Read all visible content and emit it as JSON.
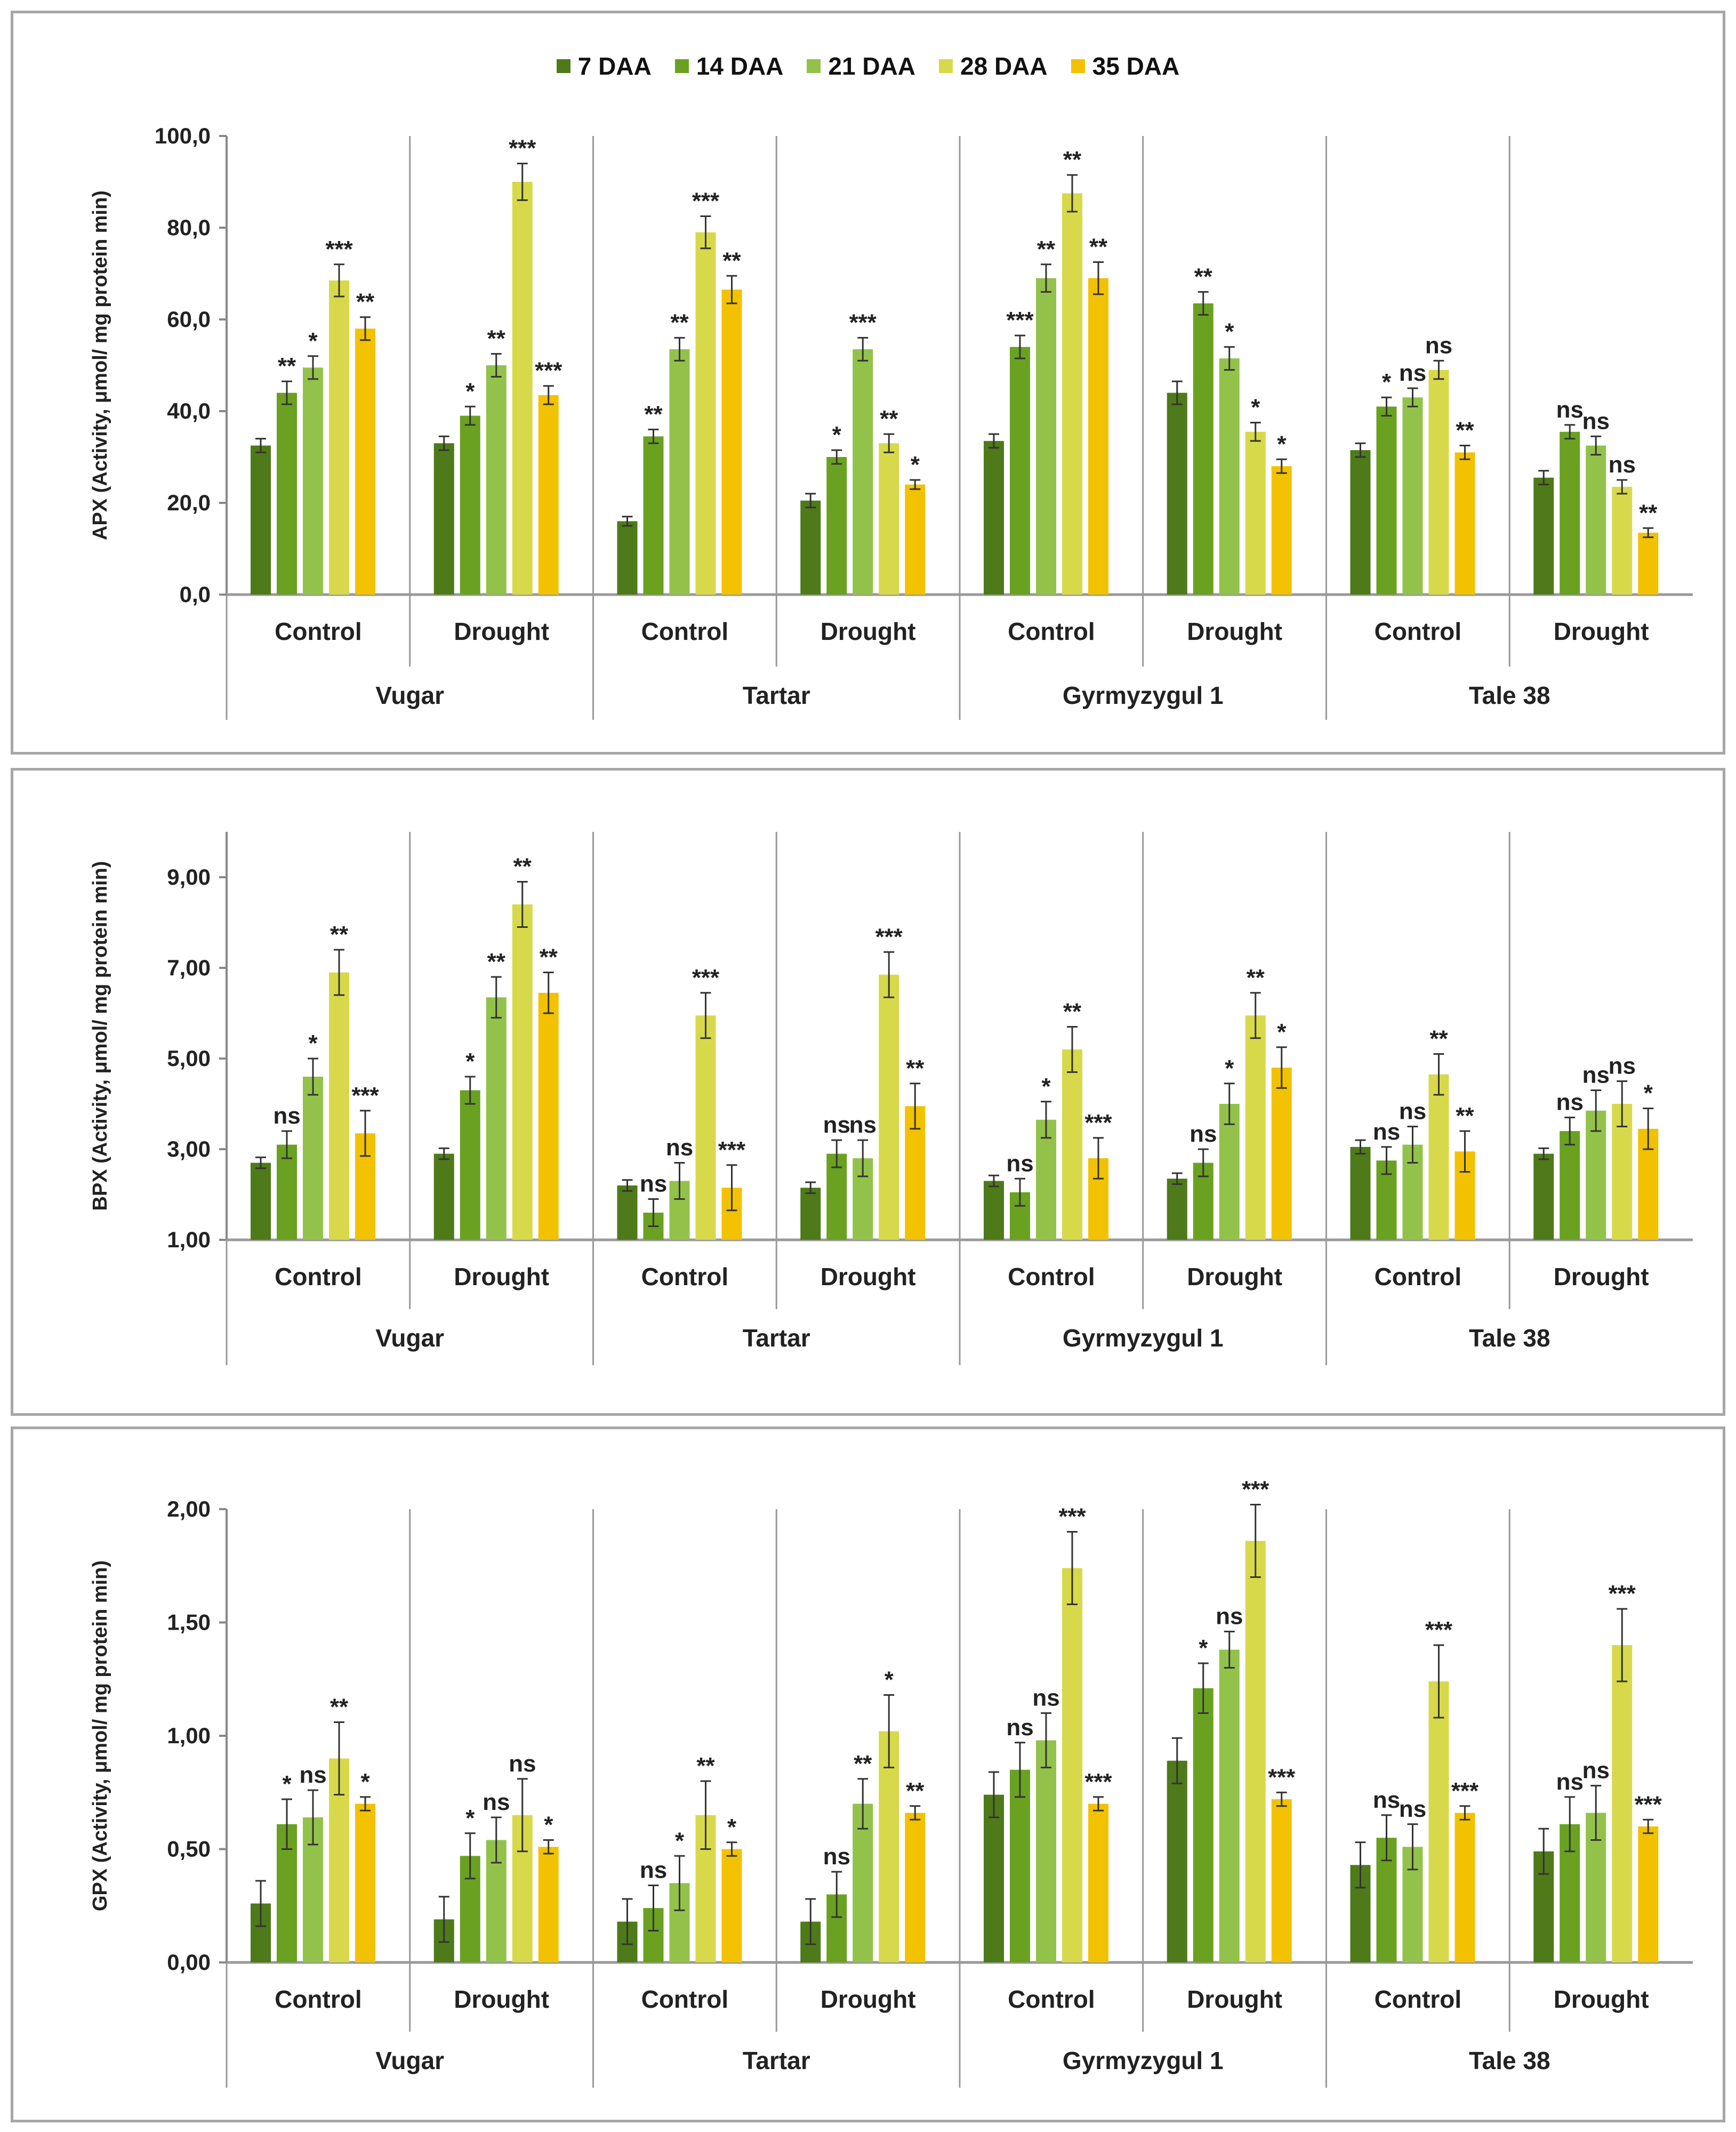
{
  "legend": {
    "items": [
      {
        "label": "7 DAA",
        "color": "#4e7a1a"
      },
      {
        "label": "14 DAA",
        "color": "#6aa121"
      },
      {
        "label": "21 DAA",
        "color": "#93c24a"
      },
      {
        "label": "28 DAA",
        "color": "#d7d94b"
      },
      {
        "label": "35 DAA",
        "color": "#f2c200"
      }
    ]
  },
  "chart_data": [
    {
      "type": "bar",
      "ylabel": "APX (Activity, μmol/ mg protein min)",
      "ylim": [
        0,
        100
      ],
      "yticks": [
        "0,0",
        "20,0",
        "40,0",
        "60,0",
        "80,0",
        "100,0"
      ],
      "yvals": [
        0,
        20,
        40,
        60,
        80,
        100
      ],
      "series_names": [
        "7 DAA",
        "14 DAA",
        "21 DAA",
        "28 DAA",
        "35 DAA"
      ],
      "groups": [
        {
          "cultivar": "Vugar",
          "conditions": [
            {
              "label": "Control",
              "values": [
                32.5,
                44,
                49.5,
                68.5,
                58
              ],
              "errors": [
                1.5,
                2.5,
                2.5,
                3.5,
                2.5
              ],
              "sig": [
                "",
                "**",
                "*",
                "***",
                "**"
              ]
            },
            {
              "label": "Drought",
              "values": [
                33,
                39,
                50,
                90,
                43.5
              ],
              "errors": [
                1.5,
                2,
                2.5,
                4,
                2
              ],
              "sig": [
                "",
                "*",
                "**",
                "***",
                "***"
              ]
            }
          ]
        },
        {
          "cultivar": "Tartar",
          "conditions": [
            {
              "label": "Control",
              "values": [
                16,
                34.5,
                53.5,
                79,
                66.5
              ],
              "errors": [
                1,
                1.5,
                2.5,
                3.5,
                3
              ],
              "sig": [
                "",
                "**",
                "**",
                "***",
                "**"
              ]
            },
            {
              "label": "Drought",
              "values": [
                20.5,
                30,
                53.5,
                33,
                24
              ],
              "errors": [
                1.5,
                1.5,
                2.5,
                2,
                1
              ],
              "sig": [
                "",
                "*",
                "***",
                "**",
                "*"
              ]
            }
          ]
        },
        {
          "cultivar": "Gyrmyzygul 1",
          "conditions": [
            {
              "label": "Control",
              "values": [
                33.5,
                54,
                69,
                87.5,
                69
              ],
              "errors": [
                1.5,
                2.5,
                3,
                4,
                3.5
              ],
              "sig": [
                "",
                "***",
                "**",
                "**",
                "**"
              ]
            },
            {
              "label": "Drought",
              "values": [
                44,
                63.5,
                51.5,
                35.5,
                28
              ],
              "errors": [
                2.5,
                2.5,
                2.5,
                2,
                1.5
              ],
              "sig": [
                "",
                "**",
                "*",
                "*",
                "*"
              ]
            }
          ]
        },
        {
          "cultivar": "Tale 38",
          "conditions": [
            {
              "label": "Control",
              "values": [
                31.5,
                41,
                43,
                49,
                31
              ],
              "errors": [
                1.5,
                2,
                2,
                2,
                1.5
              ],
              "sig": [
                "",
                "*",
                "ns",
                "ns",
                "**"
              ]
            },
            {
              "label": "Drought",
              "values": [
                25.5,
                35.5,
                32.5,
                23.5,
                13.5
              ],
              "errors": [
                1.5,
                1.5,
                2,
                1.5,
                1
              ],
              "sig": [
                "",
                "ns",
                "ns",
                "ns",
                "**"
              ]
            }
          ]
        }
      ]
    },
    {
      "type": "bar",
      "ylabel": "BPX (Activity, μmol/ mg protein min)",
      "ylim": [
        1,
        10
      ],
      "yticks": [
        "1,00",
        "3,00",
        "5,00",
        "7,00",
        "9,00"
      ],
      "yvals": [
        1,
        3,
        5,
        7,
        9
      ],
      "series_names": [
        "7 DAA",
        "14 DAA",
        "21 DAA",
        "28 DAA",
        "35 DAA"
      ],
      "groups": [
        {
          "cultivar": "Vugar",
          "conditions": [
            {
              "label": "Control",
              "values": [
                2.7,
                3.1,
                4.6,
                6.9,
                3.35
              ],
              "errors": [
                0.12,
                0.3,
                0.4,
                0.5,
                0.5
              ],
              "sig": [
                "",
                "ns",
                "*",
                "**",
                "***"
              ]
            },
            {
              "label": "Drought",
              "values": [
                2.9,
                4.3,
                6.35,
                8.4,
                6.45
              ],
              "errors": [
                0.12,
                0.3,
                0.45,
                0.5,
                0.45
              ],
              "sig": [
                "",
                "*",
                "**",
                "**",
                "**"
              ]
            }
          ]
        },
        {
          "cultivar": "Tartar",
          "conditions": [
            {
              "label": "Control",
              "values": [
                2.2,
                1.6,
                2.3,
                5.95,
                2.15
              ],
              "errors": [
                0.12,
                0.3,
                0.4,
                0.5,
                0.5
              ],
              "sig": [
                "",
                "ns",
                "ns",
                "***",
                "***"
              ]
            },
            {
              "label": "Drought",
              "values": [
                2.15,
                2.9,
                2.8,
                6.85,
                3.95
              ],
              "errors": [
                0.12,
                0.3,
                0.4,
                0.5,
                0.5
              ],
              "sig": [
                "",
                "ns",
                "ns",
                "***",
                "**"
              ]
            }
          ]
        },
        {
          "cultivar": "Gyrmyzygul 1",
          "conditions": [
            {
              "label": "Control",
              "values": [
                2.3,
                2.05,
                3.65,
                5.2,
                2.8
              ],
              "errors": [
                0.12,
                0.3,
                0.4,
                0.5,
                0.45
              ],
              "sig": [
                "",
                "ns",
                "*",
                "**",
                "***"
              ]
            },
            {
              "label": "Drought",
              "values": [
                2.35,
                2.7,
                4.0,
                5.95,
                4.8
              ],
              "errors": [
                0.12,
                0.3,
                0.45,
                0.5,
                0.45
              ],
              "sig": [
                "",
                "ns",
                "*",
                "**",
                "*"
              ]
            }
          ]
        },
        {
          "cultivar": "Tale 38",
          "conditions": [
            {
              "label": "Control",
              "values": [
                3.05,
                2.75,
                3.1,
                4.65,
                2.95
              ],
              "errors": [
                0.15,
                0.3,
                0.4,
                0.45,
                0.45
              ],
              "sig": [
                "",
                "ns",
                "ns",
                "**",
                "**"
              ]
            },
            {
              "label": "Drought",
              "values": [
                2.9,
                3.4,
                3.85,
                4.0,
                3.45
              ],
              "errors": [
                0.12,
                0.3,
                0.45,
                0.5,
                0.45
              ],
              "sig": [
                "",
                "ns",
                "ns",
                "ns",
                "*"
              ]
            }
          ]
        }
      ]
    },
    {
      "type": "bar",
      "ylabel": "GPX (Activity, μmol/ mg protein min)",
      "ylim": [
        0,
        2
      ],
      "yticks": [
        "0,00",
        "0,50",
        "1,00",
        "1,50",
        "2,00"
      ],
      "yvals": [
        0,
        0.5,
        1,
        1.5,
        2
      ],
      "series_names": [
        "7 DAA",
        "14 DAA",
        "21 DAA",
        "28 DAA",
        "35 DAA"
      ],
      "groups": [
        {
          "cultivar": "Vugar",
          "conditions": [
            {
              "label": "Control",
              "values": [
                0.26,
                0.61,
                0.64,
                0.9,
                0.7
              ],
              "errors": [
                0.1,
                0.11,
                0.12,
                0.16,
                0.03
              ],
              "sig": [
                "",
                "*",
                "ns",
                "**",
                "*"
              ]
            },
            {
              "label": "Drought",
              "values": [
                0.19,
                0.47,
                0.54,
                0.65,
                0.51
              ],
              "errors": [
                0.1,
                0.1,
                0.1,
                0.16,
                0.03
              ],
              "sig": [
                "",
                "*",
                "ns",
                "ns",
                "*"
              ]
            }
          ]
        },
        {
          "cultivar": "Tartar",
          "conditions": [
            {
              "label": "Control",
              "values": [
                0.18,
                0.24,
                0.35,
                0.65,
                0.5
              ],
              "errors": [
                0.1,
                0.1,
                0.12,
                0.15,
                0.03
              ],
              "sig": [
                "",
                "ns",
                "*",
                "**",
                "*"
              ]
            },
            {
              "label": "Drought",
              "values": [
                0.18,
                0.3,
                0.7,
                1.02,
                0.66
              ],
              "errors": [
                0.1,
                0.1,
                0.11,
                0.16,
                0.03
              ],
              "sig": [
                "",
                "ns",
                "**",
                "*",
                "**"
              ]
            }
          ]
        },
        {
          "cultivar": "Gyrmyzygul 1",
          "conditions": [
            {
              "label": "Control",
              "values": [
                0.74,
                0.85,
                0.98,
                1.74,
                0.7
              ],
              "errors": [
                0.1,
                0.12,
                0.12,
                0.16,
                0.03
              ],
              "sig": [
                "",
                "ns",
                "ns",
                "***",
                "***"
              ]
            },
            {
              "label": "Drought",
              "values": [
                0.89,
                1.21,
                1.38,
                1.86,
                0.72
              ],
              "errors": [
                0.1,
                0.11,
                0.08,
                0.16,
                0.03
              ],
              "sig": [
                "",
                "*",
                "ns",
                "***",
                "***"
              ]
            }
          ]
        },
        {
          "cultivar": "Tale 38",
          "conditions": [
            {
              "label": "Control",
              "values": [
                0.43,
                0.55,
                0.51,
                1.24,
                0.66
              ],
              "errors": [
                0.1,
                0.1,
                0.1,
                0.16,
                0.03
              ],
              "sig": [
                "",
                "ns",
                "ns",
                "***",
                "***"
              ]
            },
            {
              "label": "Drought",
              "values": [
                0.49,
                0.61,
                0.66,
                1.4,
                0.6
              ],
              "errors": [
                0.1,
                0.12,
                0.12,
                0.16,
                0.03
              ],
              "sig": [
                "",
                "ns",
                "ns",
                "***",
                "***"
              ]
            }
          ]
        }
      ]
    }
  ]
}
